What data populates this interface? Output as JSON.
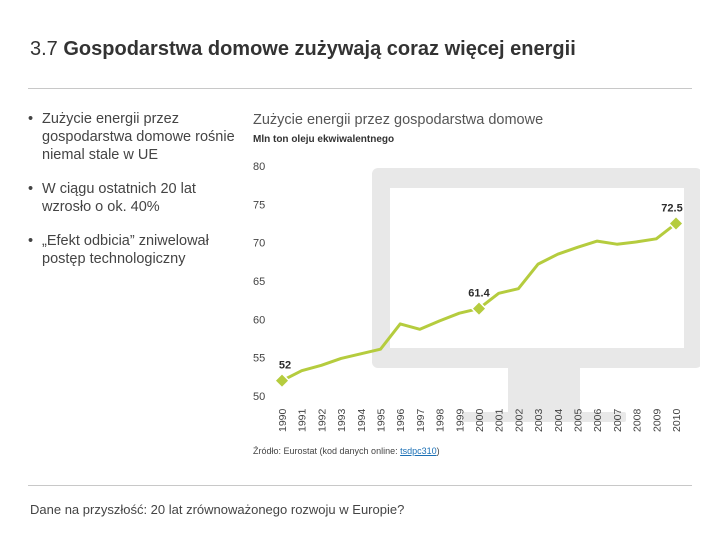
{
  "slide": {
    "number": "3.7",
    "title": "Gospodarstwa domowe zużywają coraz więcej energii",
    "bullets": [
      "Zużycie energii przez gospodarstwa domowe rośnie niemal stale w UE",
      "W ciągu ostatnich 20 lat wzrosło o ok. 40%",
      "„Efekt odbicia” zniwelował postęp technologiczny"
    ],
    "bullet_symbol": "•",
    "footer": "Dane na przyszłość: 20 lat zrównoważonego rozwoju w Europie?"
  },
  "source": {
    "prefix": "Źródło: Eurostat (kod danych online: ",
    "link": "tsdpc310",
    "suffix": ")"
  },
  "colors": {
    "line": "#b5cc3e",
    "marker": "#b5cc3e",
    "monitor": "#e6e6e6",
    "accent_text": "#2b2b2b"
  },
  "chart_data": {
    "type": "line",
    "title": "Zużycie energii przez gospodarstwa domowe",
    "ylabel": "Mln ton oleju ekwiwalentnego",
    "xlabel": "",
    "ylim": [
      50,
      80
    ],
    "yticks": [
      50,
      55,
      60,
      65,
      70,
      75,
      80
    ],
    "x": [
      "1990",
      "1991",
      "1992",
      "1993",
      "1994",
      "1995",
      "1996",
      "1997",
      "1998",
      "1999",
      "2000",
      "2001",
      "2002",
      "2003",
      "2004",
      "2005",
      "2006",
      "2007",
      "2008",
      "2009",
      "2010"
    ],
    "series": [
      {
        "values": [
          52,
          53.3,
          54,
          54.9,
          55.5,
          56.1,
          59.4,
          58.7,
          59.8,
          60.8,
          61.4,
          63.4,
          64,
          67.2,
          68.5,
          69.4,
          70.2,
          69.8,
          70.1,
          70.5,
          72.5
        ]
      }
    ],
    "annotations": [
      {
        "x": "1990",
        "y": 52,
        "label": "52"
      },
      {
        "x": "2000",
        "y": 61.4,
        "label": "61.4"
      },
      {
        "x": "2010",
        "y": 72.5,
        "label": "72.5"
      }
    ],
    "grid": false,
    "legend": "none"
  }
}
